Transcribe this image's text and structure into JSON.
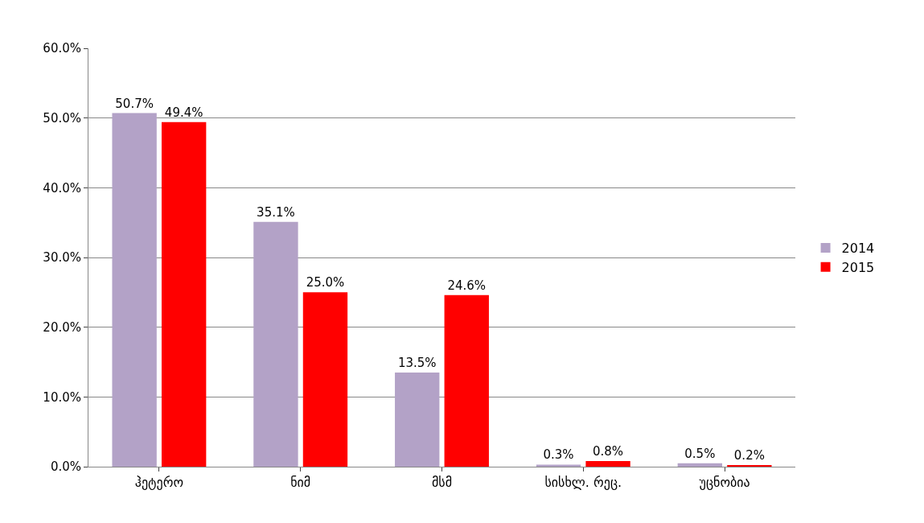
{
  "chart_data": {
    "type": "bar",
    "categories": [
      "ჰეტერო",
      "ნიმ",
      "მსმ",
      "სისხლ. რეც.",
      "უცნობია"
    ],
    "series": [
      {
        "name": "2014",
        "color": "#b3a2c7",
        "values": [
          50.7,
          35.1,
          13.5,
          0.3,
          0.5
        ],
        "value_labels": [
          "50.7%",
          "35.1%",
          "13.5%",
          "0.3%",
          "0.5%"
        ]
      },
      {
        "name": "2015",
        "color": "#ff0000",
        "values": [
          49.4,
          25.0,
          24.6,
          0.8,
          0.2
        ],
        "value_labels": [
          "49.4%",
          "25.0%",
          "24.6%",
          "0.8%",
          "0.2%"
        ]
      }
    ],
    "ylim": [
      0,
      60
    ],
    "yticks": [
      {
        "value": 0,
        "label": "0.0%"
      },
      {
        "value": 10,
        "label": "10.0%"
      },
      {
        "value": 20,
        "label": "20.0%"
      },
      {
        "value": 30,
        "label": "30.0%"
      },
      {
        "value": 40,
        "label": "40.0%"
      },
      {
        "value": 50,
        "label": "50.0%"
      },
      {
        "value": 60,
        "label": "60.0%"
      }
    ],
    "grid": "y",
    "legend": "right"
  }
}
